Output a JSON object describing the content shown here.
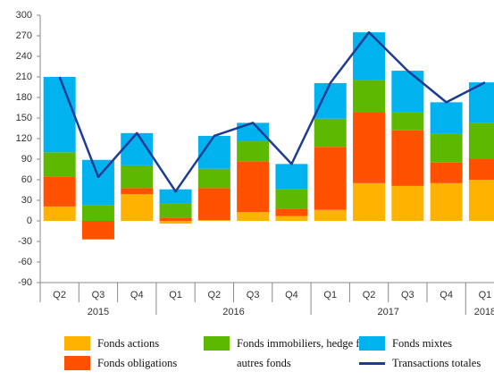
{
  "chart_data": {
    "type": "bar",
    "categories": [
      "Q2",
      "Q3",
      "Q4",
      "Q1",
      "Q2",
      "Q3",
      "Q4",
      "Q1",
      "Q2",
      "Q3",
      "Q4",
      "Q1"
    ],
    "years": [
      "2015",
      "2016",
      "2017",
      "2018"
    ],
    "stacked": true,
    "series": [
      {
        "name": "Fonds actions",
        "color": "#ffb300",
        "values": [
          21,
          0,
          39,
          -4,
          1,
          13,
          7,
          16,
          55,
          51,
          55,
          60
        ]
      },
      {
        "name": "Fonds obligations",
        "color": "#ff5100",
        "values": [
          43,
          -27,
          9,
          5,
          47,
          74,
          11,
          92,
          104,
          81,
          30,
          30
        ]
      },
      {
        "name": "Fonds immobiliers, hedge funds, autres fonds",
        "color": "#5db800",
        "values": [
          36,
          23,
          33,
          21,
          28,
          29,
          28,
          41,
          47,
          26,
          42,
          53
        ]
      },
      {
        "name": "Fonds mixtes",
        "color": "#00b2ee",
        "values": [
          110,
          66,
          47,
          20,
          48,
          27,
          37,
          52,
          69,
          61,
          46,
          59
        ]
      },
      {
        "name": "Transactions totales",
        "color": "#1f3c94",
        "type": "line",
        "values": [
          210,
          64,
          128,
          43,
          124,
          143,
          83,
          201,
          275,
          219,
          173,
          202
        ]
      }
    ],
    "ylim": [
      -90,
      300
    ],
    "yticks": [
      -90,
      -60,
      -30,
      0,
      30,
      60,
      90,
      120,
      150,
      180,
      210,
      240,
      270,
      300
    ]
  }
}
